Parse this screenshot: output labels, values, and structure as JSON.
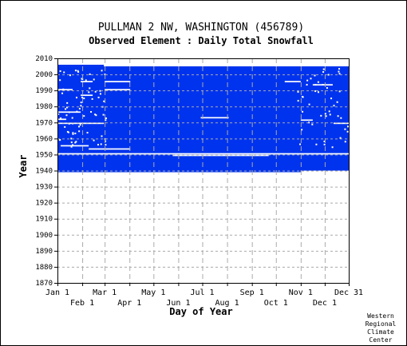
{
  "chart_data": {
    "type": "heatmap",
    "title": "PULLMAN 2 NW, WASHINGTON   (456789)",
    "subtitle": "Observed Element : Daily Total Snowfall",
    "xlabel": "Day of Year",
    "ylabel": "Year",
    "ylim": [
      1870,
      2010
    ],
    "y_ticks": [
      1870,
      1880,
      1890,
      1900,
      1910,
      1920,
      1930,
      1940,
      1950,
      1960,
      1970,
      1980,
      1990,
      2000,
      2010
    ],
    "x_ticks_top_row": [
      "Jan 1",
      "Mar 1",
      "May 1",
      "Jul 1",
      "Sep 1",
      "Nov 1",
      "Dec 31"
    ],
    "x_ticks_bottom_row": [
      "Feb 1",
      "Apr 1",
      "Jun 1",
      "Aug 1",
      "Oct 1",
      "Dec 1"
    ],
    "grid": true,
    "fill_color": "#0033ee",
    "gap_color": "#ffffff",
    "record": {
      "main_block": {
        "day_start": 1,
        "day_end": 365,
        "year_start": 1940,
        "year_end": 2005
      },
      "early_block": {
        "day_start": 1,
        "day_end": 59,
        "year_start": 2005,
        "year_end": 2006
      },
      "last_year_short": {
        "day_start": 1,
        "day_end": 305,
        "year": 1940
      }
    },
    "missing_segments": [
      {
        "year": 1950.5,
        "day_start": 1,
        "day_end": 365
      },
      {
        "year": 1949.5,
        "day_start": 145,
        "day_end": 265
      },
      {
        "year": 1953.5,
        "day_start": 40,
        "day_end": 92
      },
      {
        "year": 1955.5,
        "day_start": 5,
        "day_end": 40
      },
      {
        "year": 1969.5,
        "day_start": 1,
        "day_end": 59
      },
      {
        "year": 1972.0,
        "day_start": 1,
        "day_end": 12
      },
      {
        "year": 1973.0,
        "day_start": 180,
        "day_end": 215
      },
      {
        "year": 1976.5,
        "day_start": 1,
        "day_end": 30
      },
      {
        "year": 1987.0,
        "day_start": 30,
        "day_end": 45
      },
      {
        "year": 1990.5,
        "day_start": 1,
        "day_end": 20
      },
      {
        "year": 1990.5,
        "day_start": 60,
        "day_end": 92
      },
      {
        "year": 1995.5,
        "day_start": 60,
        "day_end": 92
      },
      {
        "year": 1995.5,
        "day_start": 30,
        "day_end": 45
      },
      {
        "year": 1969.5,
        "day_start": 346,
        "day_end": 365
      },
      {
        "year": 1971.5,
        "day_start": 305,
        "day_end": 320
      },
      {
        "year": 1993.5,
        "day_start": 320,
        "day_end": 345
      },
      {
        "year": 1995.5,
        "day_start": 285,
        "day_end": 305
      }
    ],
    "credit": [
      "Western",
      "Regional",
      "Climate",
      "Center"
    ]
  }
}
